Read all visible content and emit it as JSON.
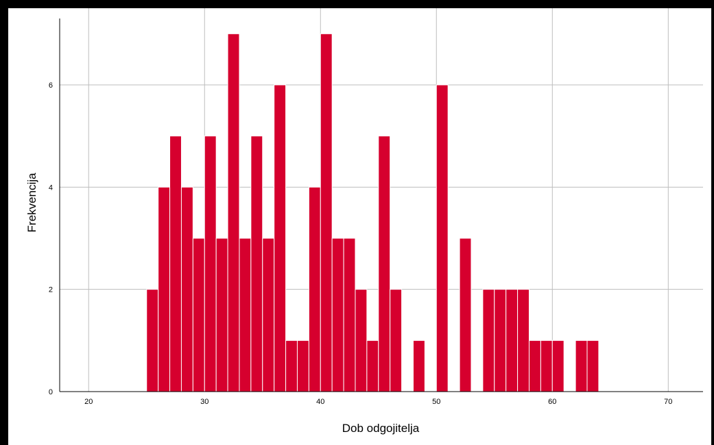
{
  "chart_data": {
    "type": "bar",
    "xlabel": "Dob odgojitelja",
    "ylabel": "Frekvencija",
    "xlim": [
      17.5,
      73
    ],
    "ylim": [
      0,
      7.5
    ],
    "x_ticks": [
      20,
      30,
      40,
      50,
      60,
      70
    ],
    "y_ticks": [
      0,
      2,
      4,
      6
    ],
    "grid": true,
    "bar_color": "#d6002e",
    "bar_edge_color": "#ffffff",
    "bin_width": 1,
    "bins": [
      {
        "x": 25,
        "count": 2
      },
      {
        "x": 26,
        "count": 4
      },
      {
        "x": 27,
        "count": 5
      },
      {
        "x": 28,
        "count": 4
      },
      {
        "x": 29,
        "count": 3
      },
      {
        "x": 30,
        "count": 5
      },
      {
        "x": 31,
        "count": 3
      },
      {
        "x": 32,
        "count": 7
      },
      {
        "x": 33,
        "count": 3
      },
      {
        "x": 34,
        "count": 5
      },
      {
        "x": 35,
        "count": 3
      },
      {
        "x": 36,
        "count": 6
      },
      {
        "x": 37,
        "count": 1
      },
      {
        "x": 38,
        "count": 1
      },
      {
        "x": 39,
        "count": 4
      },
      {
        "x": 40,
        "count": 7
      },
      {
        "x": 41,
        "count": 3
      },
      {
        "x": 42,
        "count": 3
      },
      {
        "x": 43,
        "count": 2
      },
      {
        "x": 44,
        "count": 1
      },
      {
        "x": 45,
        "count": 5
      },
      {
        "x": 46,
        "count": 2
      },
      {
        "x": 48,
        "count": 1
      },
      {
        "x": 50,
        "count": 6
      },
      {
        "x": 52,
        "count": 3
      },
      {
        "x": 54,
        "count": 2
      },
      {
        "x": 55,
        "count": 2
      },
      {
        "x": 56,
        "count": 2
      },
      {
        "x": 57,
        "count": 2
      },
      {
        "x": 58,
        "count": 1
      },
      {
        "x": 59,
        "count": 1
      },
      {
        "x": 60,
        "count": 1
      },
      {
        "x": 62,
        "count": 1
      },
      {
        "x": 63,
        "count": 1
      }
    ]
  }
}
